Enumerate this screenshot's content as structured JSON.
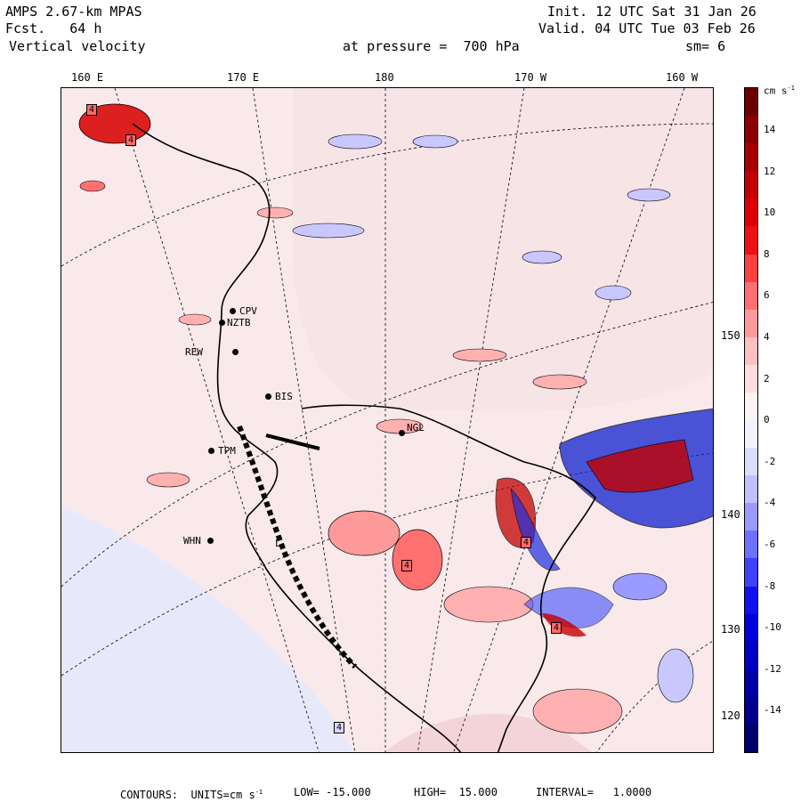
{
  "header": {
    "model": "AMPS 2.67-km MPAS",
    "forecast": "Fcst.   64 h",
    "field": "Vertical velocity",
    "init": "Init. 12 UTC Sat 31 Jan 26",
    "valid": "Valid. 04 UTC Tue 03 Feb 26",
    "level": "at pressure =  700 hPa",
    "smoothing": "sm= 6"
  },
  "lon_labels": [
    "160 E",
    "170 E",
    "180",
    "170 W",
    "160 W"
  ],
  "lat_labels": [
    "150 W",
    "140 W",
    "130 W",
    "120 W"
  ],
  "stations": [
    "CPV",
    "NZTB",
    "REW",
    "BIS",
    "TPM",
    "WHN",
    "NGL",
    "L"
  ],
  "extreme_markers": [
    "4",
    "4",
    "4",
    "4",
    "4",
    "4"
  ],
  "colorbar": {
    "units_label": "cm s",
    "units_exp": "-1",
    "ticks": [
      "14",
      "12",
      "10",
      "8",
      "6",
      "4",
      "2",
      "0",
      "-2",
      "-4",
      "-6",
      "-8",
      "-10",
      "-12",
      "-14"
    ],
    "colors": [
      "#6b0000",
      "#8c0000",
      "#a80000",
      "#c40000",
      "#dc0000",
      "#f01010",
      "#ff4040",
      "#ff7070",
      "#ff9a9a",
      "#ffc0c0",
      "#ffdede",
      "#fff2f2",
      "#f2f2ff",
      "#dcdcff",
      "#c0c0ff",
      "#9a9aff",
      "#7070ff",
      "#4040ff",
      "#1010f0",
      "#0000dc",
      "#0000c4",
      "#0000a8",
      "#00008c",
      "#00006b"
    ]
  },
  "footer": {
    "contours": "CONTOURS:  UNITS=cm s",
    "units_exp": "-1",
    "low": "LOW= -15.000",
    "high": "HIGH=  15.000",
    "interval": "INTERVAL=   1.0000"
  }
}
